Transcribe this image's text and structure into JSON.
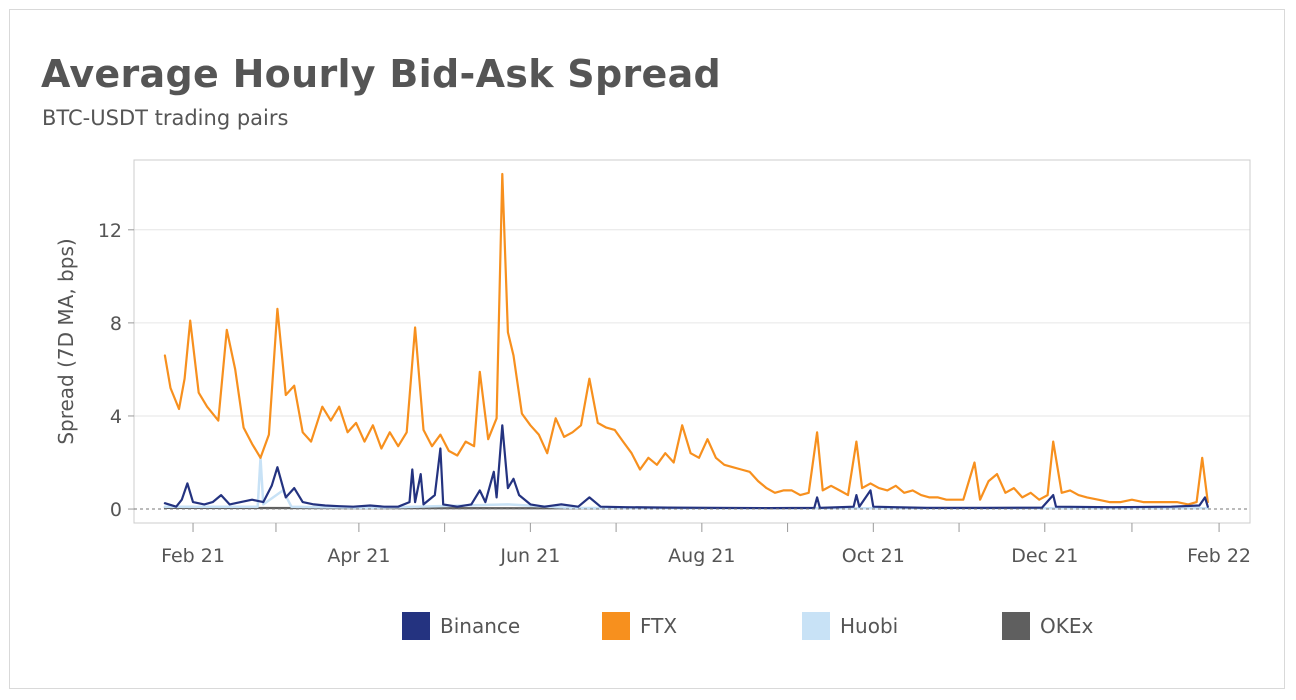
{
  "chart_data": {
    "type": "line",
    "title": "Average Hourly Bid-Ask Spread",
    "subtitle": "BTC-USDT trading pairs",
    "ylabel": "Spread (7D MA, bps)",
    "xlabel": "",
    "ylim": [
      -0.6,
      15.0
    ],
    "xlim": [
      "2021-01-11",
      "2022-02-12"
    ],
    "yticks": [
      0,
      4,
      8,
      12
    ],
    "xticks": [
      {
        "date": "2021-02-01",
        "label": "Feb 21"
      },
      {
        "date": "2021-04-01",
        "label": "Apr 21"
      },
      {
        "date": "2021-06-01",
        "label": "Jun 21"
      },
      {
        "date": "2021-08-01",
        "label": "Aug 21"
      },
      {
        "date": "2021-10-01",
        "label": "Oct 21"
      },
      {
        "date": "2021-12-01",
        "label": "Dec 21"
      },
      {
        "date": "2022-02-01",
        "label": "Feb 22"
      }
    ],
    "grid": true,
    "legend_position": "bottom",
    "series": [
      {
        "name": "FTX",
        "color": "#f7901e",
        "points": [
          [
            "2021-01-22",
            6.6
          ],
          [
            "2021-01-24",
            5.2
          ],
          [
            "2021-01-27",
            4.3
          ],
          [
            "2021-01-29",
            5.6
          ],
          [
            "2021-01-31",
            8.1
          ],
          [
            "2021-02-03",
            5.0
          ],
          [
            "2021-02-06",
            4.4
          ],
          [
            "2021-02-10",
            3.8
          ],
          [
            "2021-02-13",
            7.7
          ],
          [
            "2021-02-16",
            6.0
          ],
          [
            "2021-02-19",
            3.5
          ],
          [
            "2021-02-22",
            2.8
          ],
          [
            "2021-02-25",
            2.2
          ],
          [
            "2021-02-28",
            3.2
          ],
          [
            "2021-03-03",
            8.6
          ],
          [
            "2021-03-06",
            4.9
          ],
          [
            "2021-03-09",
            5.3
          ],
          [
            "2021-03-12",
            3.3
          ],
          [
            "2021-03-15",
            2.9
          ],
          [
            "2021-03-19",
            4.4
          ],
          [
            "2021-03-22",
            3.8
          ],
          [
            "2021-03-25",
            4.4
          ],
          [
            "2021-03-28",
            3.3
          ],
          [
            "2021-03-31",
            3.7
          ],
          [
            "2021-04-03",
            2.9
          ],
          [
            "2021-04-06",
            3.6
          ],
          [
            "2021-04-09",
            2.6
          ],
          [
            "2021-04-12",
            3.3
          ],
          [
            "2021-04-15",
            2.7
          ],
          [
            "2021-04-18",
            3.3
          ],
          [
            "2021-04-21",
            7.8
          ],
          [
            "2021-04-24",
            3.4
          ],
          [
            "2021-04-27",
            2.7
          ],
          [
            "2021-04-30",
            3.2
          ],
          [
            "2021-05-03",
            2.5
          ],
          [
            "2021-05-06",
            2.3
          ],
          [
            "2021-05-09",
            2.9
          ],
          [
            "2021-05-12",
            2.7
          ],
          [
            "2021-05-14",
            5.9
          ],
          [
            "2021-05-17",
            3.0
          ],
          [
            "2021-05-20",
            3.9
          ],
          [
            "2021-05-22",
            14.4
          ],
          [
            "2021-05-24",
            7.6
          ],
          [
            "2021-05-26",
            6.6
          ],
          [
            "2021-05-29",
            4.1
          ],
          [
            "2021-06-01",
            3.6
          ],
          [
            "2021-06-04",
            3.2
          ],
          [
            "2021-06-07",
            2.4
          ],
          [
            "2021-06-10",
            3.9
          ],
          [
            "2021-06-13",
            3.1
          ],
          [
            "2021-06-16",
            3.3
          ],
          [
            "2021-06-19",
            3.6
          ],
          [
            "2021-06-22",
            5.6
          ],
          [
            "2021-06-25",
            3.7
          ],
          [
            "2021-06-28",
            3.5
          ],
          [
            "2021-07-01",
            3.4
          ],
          [
            "2021-07-04",
            2.9
          ],
          [
            "2021-07-07",
            2.4
          ],
          [
            "2021-07-10",
            1.7
          ],
          [
            "2021-07-13",
            2.2
          ],
          [
            "2021-07-16",
            1.9
          ],
          [
            "2021-07-19",
            2.4
          ],
          [
            "2021-07-22",
            2.0
          ],
          [
            "2021-07-25",
            3.6
          ],
          [
            "2021-07-28",
            2.4
          ],
          [
            "2021-07-31",
            2.2
          ],
          [
            "2021-08-03",
            3.0
          ],
          [
            "2021-08-06",
            2.2
          ],
          [
            "2021-08-09",
            1.9
          ],
          [
            "2021-08-12",
            1.8
          ],
          [
            "2021-08-15",
            1.7
          ],
          [
            "2021-08-18",
            1.6
          ],
          [
            "2021-08-21",
            1.2
          ],
          [
            "2021-08-24",
            0.9
          ],
          [
            "2021-08-27",
            0.7
          ],
          [
            "2021-08-30",
            0.8
          ],
          [
            "2021-09-02",
            0.8
          ],
          [
            "2021-09-05",
            0.6
          ],
          [
            "2021-09-08",
            0.7
          ],
          [
            "2021-09-11",
            3.3
          ],
          [
            "2021-09-13",
            0.8
          ],
          [
            "2021-09-16",
            1.0
          ],
          [
            "2021-09-19",
            0.8
          ],
          [
            "2021-09-22",
            0.6
          ],
          [
            "2021-09-25",
            2.9
          ],
          [
            "2021-09-27",
            0.9
          ],
          [
            "2021-09-30",
            1.1
          ],
          [
            "2021-10-03",
            0.9
          ],
          [
            "2021-10-06",
            0.8
          ],
          [
            "2021-10-09",
            1.0
          ],
          [
            "2021-10-12",
            0.7
          ],
          [
            "2021-10-15",
            0.8
          ],
          [
            "2021-10-18",
            0.6
          ],
          [
            "2021-10-21",
            0.5
          ],
          [
            "2021-10-24",
            0.5
          ],
          [
            "2021-10-27",
            0.4
          ],
          [
            "2021-10-30",
            0.4
          ],
          [
            "2021-11-02",
            0.4
          ],
          [
            "2021-11-06",
            2.0
          ],
          [
            "2021-11-08",
            0.4
          ],
          [
            "2021-11-11",
            1.2
          ],
          [
            "2021-11-14",
            1.5
          ],
          [
            "2021-11-17",
            0.7
          ],
          [
            "2021-11-20",
            0.9
          ],
          [
            "2021-11-23",
            0.5
          ],
          [
            "2021-11-26",
            0.7
          ],
          [
            "2021-11-29",
            0.4
          ],
          [
            "2021-12-02",
            0.6
          ],
          [
            "2021-12-04",
            2.9
          ],
          [
            "2021-12-07",
            0.7
          ],
          [
            "2021-12-10",
            0.8
          ],
          [
            "2021-12-13",
            0.6
          ],
          [
            "2021-12-16",
            0.5
          ],
          [
            "2021-12-20",
            0.4
          ],
          [
            "2021-12-24",
            0.3
          ],
          [
            "2021-12-28",
            0.3
          ],
          [
            "2022-01-01",
            0.4
          ],
          [
            "2022-01-05",
            0.3
          ],
          [
            "2022-01-09",
            0.3
          ],
          [
            "2022-01-13",
            0.3
          ],
          [
            "2022-01-17",
            0.3
          ],
          [
            "2022-01-21",
            0.2
          ],
          [
            "2022-01-24",
            0.3
          ],
          [
            "2022-01-26",
            2.2
          ],
          [
            "2022-01-28",
            0.3
          ]
        ]
      },
      {
        "name": "Binance",
        "color": "#243380",
        "points": [
          [
            "2021-01-22",
            0.25
          ],
          [
            "2021-01-26",
            0.1
          ],
          [
            "2021-01-28",
            0.4
          ],
          [
            "2021-01-30",
            1.1
          ],
          [
            "2021-02-01",
            0.3
          ],
          [
            "2021-02-05",
            0.2
          ],
          [
            "2021-02-08",
            0.3
          ],
          [
            "2021-02-11",
            0.6
          ],
          [
            "2021-02-14",
            0.2
          ],
          [
            "2021-02-18",
            0.3
          ],
          [
            "2021-02-22",
            0.4
          ],
          [
            "2021-02-26",
            0.3
          ],
          [
            "2021-03-01",
            1.0
          ],
          [
            "2021-03-03",
            1.8
          ],
          [
            "2021-03-06",
            0.5
          ],
          [
            "2021-03-09",
            0.9
          ],
          [
            "2021-03-12",
            0.3
          ],
          [
            "2021-03-16",
            0.2
          ],
          [
            "2021-03-20",
            0.15
          ],
          [
            "2021-03-25",
            0.12
          ],
          [
            "2021-03-30",
            0.1
          ],
          [
            "2021-04-05",
            0.15
          ],
          [
            "2021-04-10",
            0.1
          ],
          [
            "2021-04-15",
            0.1
          ],
          [
            "2021-04-19",
            0.3
          ],
          [
            "2021-04-20",
            1.7
          ],
          [
            "2021-04-21",
            0.3
          ],
          [
            "2021-04-23",
            1.5
          ],
          [
            "2021-04-24",
            0.2
          ],
          [
            "2021-04-28",
            0.6
          ],
          [
            "2021-04-30",
            2.6
          ],
          [
            "2021-05-01",
            0.2
          ],
          [
            "2021-05-06",
            0.1
          ],
          [
            "2021-05-11",
            0.2
          ],
          [
            "2021-05-14",
            0.8
          ],
          [
            "2021-05-16",
            0.3
          ],
          [
            "2021-05-19",
            1.6
          ],
          [
            "2021-05-20",
            0.5
          ],
          [
            "2021-05-22",
            3.6
          ],
          [
            "2021-05-24",
            0.9
          ],
          [
            "2021-05-26",
            1.3
          ],
          [
            "2021-05-28",
            0.6
          ],
          [
            "2021-06-01",
            0.2
          ],
          [
            "2021-06-06",
            0.1
          ],
          [
            "2021-06-12",
            0.2
          ],
          [
            "2021-06-18",
            0.1
          ],
          [
            "2021-06-22",
            0.5
          ],
          [
            "2021-06-26",
            0.1
          ],
          [
            "2021-07-05",
            0.08
          ],
          [
            "2021-07-20",
            0.06
          ],
          [
            "2021-08-05",
            0.05
          ],
          [
            "2021-08-25",
            0.04
          ],
          [
            "2021-09-10",
            0.05
          ],
          [
            "2021-09-11",
            0.5
          ],
          [
            "2021-09-12",
            0.05
          ],
          [
            "2021-09-24",
            0.1
          ],
          [
            "2021-09-25",
            0.6
          ],
          [
            "2021-09-26",
            0.1
          ],
          [
            "2021-09-30",
            0.8
          ],
          [
            "2021-10-01",
            0.1
          ],
          [
            "2021-10-20",
            0.05
          ],
          [
            "2021-11-10",
            0.05
          ],
          [
            "2021-11-30",
            0.06
          ],
          [
            "2021-12-04",
            0.6
          ],
          [
            "2021-12-05",
            0.1
          ],
          [
            "2021-12-25",
            0.08
          ],
          [
            "2022-01-15",
            0.1
          ],
          [
            "2022-01-25",
            0.15
          ],
          [
            "2022-01-27",
            0.5
          ],
          [
            "2022-01-28",
            0.1
          ]
        ]
      },
      {
        "name": "Huobi",
        "color": "#c8e2f6",
        "points": [
          [
            "2021-01-22",
            0.1
          ],
          [
            "2021-02-10",
            0.1
          ],
          [
            "2021-02-24",
            0.1
          ],
          [
            "2021-02-25",
            2.2
          ],
          [
            "2021-02-26",
            0.2
          ],
          [
            "2021-03-05",
            0.8
          ],
          [
            "2021-03-08",
            0.1
          ],
          [
            "2021-04-05",
            0.05
          ],
          [
            "2021-05-24",
            0.2
          ],
          [
            "2021-06-15",
            0.05
          ],
          [
            "2021-07-15",
            0.03
          ],
          [
            "2021-09-15",
            0.03
          ],
          [
            "2021-12-01",
            0.03
          ],
          [
            "2022-01-28",
            0.03
          ]
        ]
      },
      {
        "name": "OKEx",
        "color": "#5f5f5f",
        "points": [
          [
            "2021-01-22",
            0.05
          ],
          [
            "2021-04-01",
            0.04
          ],
          [
            "2021-07-01",
            0.03
          ],
          [
            "2021-10-01",
            0.03
          ],
          [
            "2022-01-28",
            0.03
          ]
        ]
      }
    ]
  }
}
